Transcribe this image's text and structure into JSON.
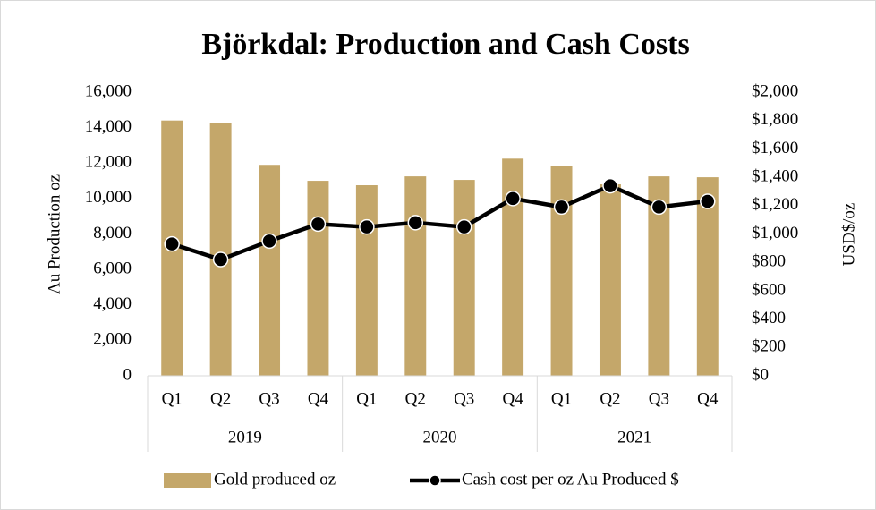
{
  "chart_data": {
    "type": "bar_line",
    "title": "Björkdal: Production and Cash Costs",
    "categories": [
      "Q1",
      "Q2",
      "Q3",
      "Q4",
      "Q1",
      "Q2",
      "Q3",
      "Q4",
      "Q1",
      "Q2",
      "Q3",
      "Q4"
    ],
    "category_groups": [
      "2019",
      "2020",
      "2021"
    ],
    "y_label": "Au Production oz",
    "y2_label": "USD$/oz",
    "ylim": [
      0,
      16000
    ],
    "yticks": [
      0,
      {
        "value": 2000,
        "label": "2,000"
      },
      {
        "value": 4000,
        "label": "4,000"
      },
      {
        "value": 6000,
        "label": "6,000"
      },
      {
        "value": 8000,
        "label": "8,000"
      },
      {
        "value": 10000,
        "label": "10,000"
      },
      {
        "value": 12000,
        "label": "12,000"
      },
      {
        "value": 14000,
        "label": "14,000"
      },
      {
        "value": 16000,
        "label": "16,000"
      }
    ],
    "y2lim": [
      0,
      2000
    ],
    "y2ticks": [
      {
        "value": 0,
        "label": "$0"
      },
      {
        "value": 200,
        "label": "$200"
      },
      {
        "value": 400,
        "label": "$400"
      },
      {
        "value": 600,
        "label": "$600"
      },
      {
        "value": 800,
        "label": "$800"
      },
      {
        "value": 1000,
        "label": "$1,000"
      },
      {
        "value": 1200,
        "label": "$1,200"
      },
      {
        "value": 1400,
        "label": "$1,400"
      },
      {
        "value": 1600,
        "label": "$1,600"
      },
      {
        "value": 1800,
        "label": "$1,800"
      },
      {
        "value": 2000,
        "label": "$2,000"
      }
    ],
    "series": [
      {
        "name": "Gold produced oz",
        "type": "bar",
        "color": "#c4a76a",
        "values": [
          14400,
          14250,
          11900,
          11000,
          10750,
          11250,
          11050,
          12250,
          11850,
          10800,
          11250,
          11200
        ]
      },
      {
        "name": "Cash cost per oz Au Produced $",
        "type": "line",
        "axis": "y2",
        "color": "#000000",
        "values": [
          930,
          820,
          950,
          1070,
          1050,
          1080,
          1050,
          1250,
          1190,
          1340,
          1190,
          1230
        ]
      }
    ]
  }
}
